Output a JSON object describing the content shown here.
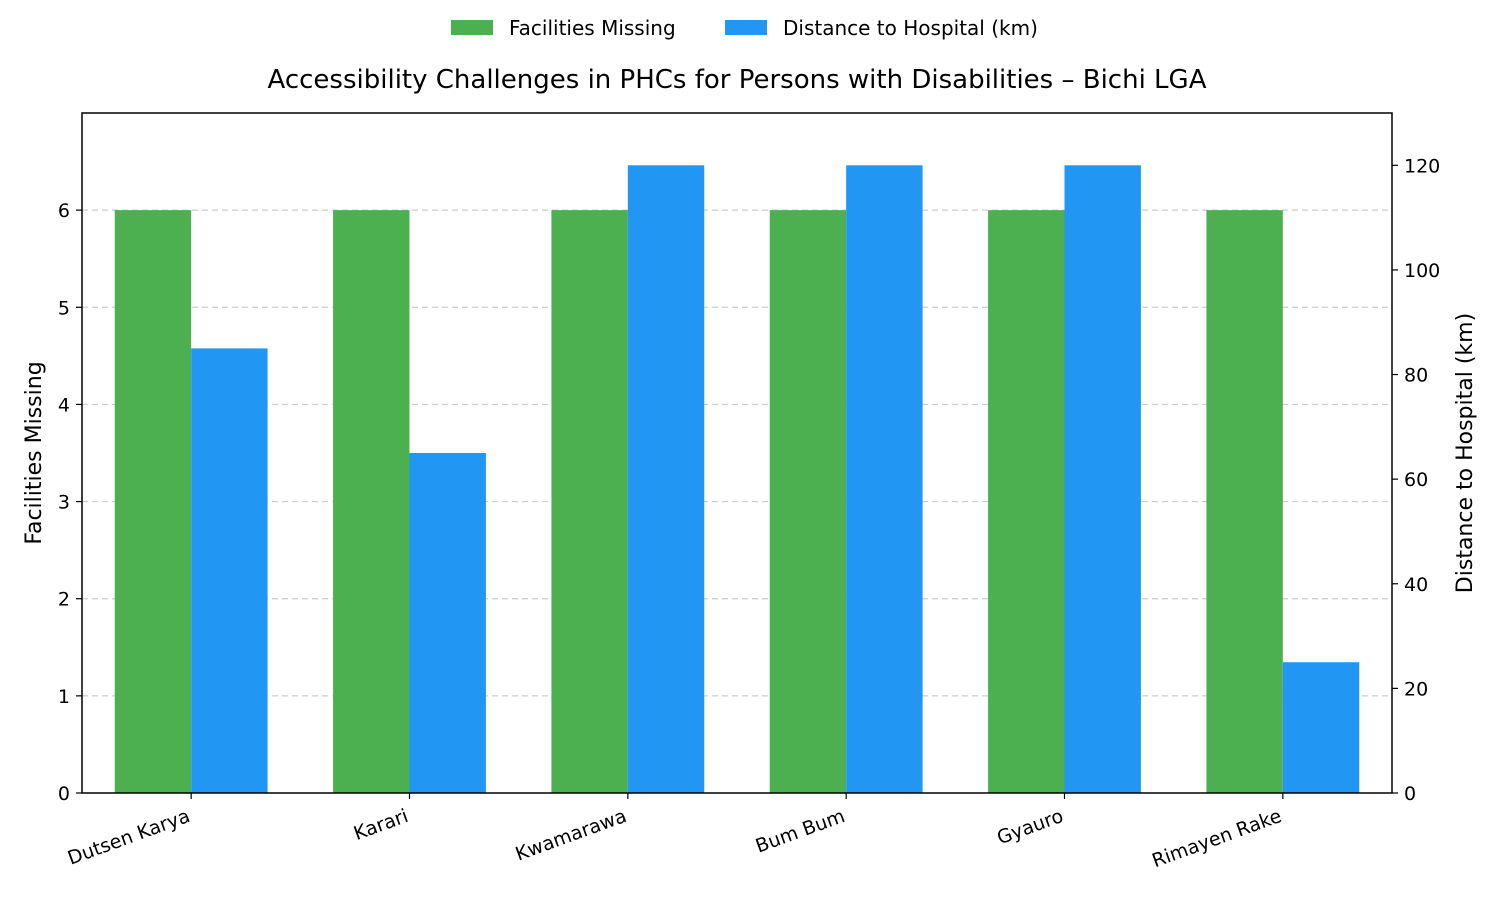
{
  "chart_data": {
    "type": "bar",
    "title": "Accessibility Challenges in PHCs for Persons with Disabilities – Bichi LGA",
    "categories": [
      "Dutsen Karya",
      "Karari",
      "Kwamarawa",
      "Bum Bum",
      "Gyauro",
      "Rimayen Rake"
    ],
    "series": [
      {
        "name": "Facilities Missing",
        "axis": "left",
        "color": "#4caf50",
        "values": [
          6,
          6,
          6,
          6,
          6,
          6
        ]
      },
      {
        "name": "Distance to Hospital (km)",
        "axis": "right",
        "color": "#2196f3",
        "values": [
          85,
          65,
          120,
          120,
          120,
          25
        ]
      }
    ],
    "ylabel_left": "Facilities Missing",
    "ylabel_right": "Distance to Hospital (km)",
    "ylim_left": [
      0,
      7
    ],
    "ylim_right": [
      0,
      130
    ],
    "yticks_left": [
      "0",
      "1",
      "2",
      "3",
      "4",
      "5",
      "6"
    ],
    "yticks_right": [
      "0",
      "20",
      "40",
      "60",
      "80",
      "100",
      "120"
    ],
    "grid": "horizontal dashed",
    "legend_position": "top-center"
  }
}
